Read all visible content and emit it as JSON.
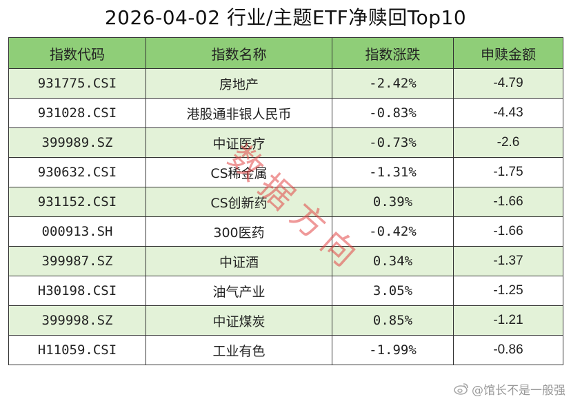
{
  "title": "2026-04-02 行业/主题ETF净赎回Top10",
  "colors": {
    "header_bg": "#8fce78",
    "row_light": "#e3f2d8",
    "row_white": "#ffffff",
    "border": "#333333",
    "watermark": "#e14646"
  },
  "table": {
    "headers": [
      "指数代码",
      "指数名称",
      "指数涨跌",
      "申赎金额"
    ],
    "rows": [
      {
        "code": "931775.CSI",
        "name": "房地产",
        "change": "-2.42%",
        "amount": "-4.79"
      },
      {
        "code": "931028.CSI",
        "name": "港股通非银人民币",
        "change": "-0.83%",
        "amount": "-4.43"
      },
      {
        "code": "399989.SZ",
        "name": "中证医疗",
        "change": "-0.73%",
        "amount": "-2.6"
      },
      {
        "code": "930632.CSI",
        "name": "CS稀金属",
        "change": "-1.31%",
        "amount": "-1.75"
      },
      {
        "code": "931152.CSI",
        "name": "CS创新药",
        "change": "0.39%",
        "amount": "-1.66"
      },
      {
        "code": "000913.SH",
        "name": "300医药",
        "change": "-0.42%",
        "amount": "-1.66"
      },
      {
        "code": "399987.SZ",
        "name": "中证酒",
        "change": "0.34%",
        "amount": "-1.37"
      },
      {
        "code": "H30198.CSI",
        "name": "油气产业",
        "change": "3.05%",
        "amount": "-1.25"
      },
      {
        "code": "399998.SZ",
        "name": "中证煤炭",
        "change": "0.85%",
        "amount": "-1.21"
      },
      {
        "code": "H11059.CSI",
        "name": "工业有色",
        "change": "-1.99%",
        "amount": "-0.86"
      }
    ]
  },
  "watermark": [
    "数",
    "据",
    "方",
    "向"
  ],
  "footer": {
    "icon": "weibo-icon",
    "handle": "@馆长不是一般强"
  }
}
